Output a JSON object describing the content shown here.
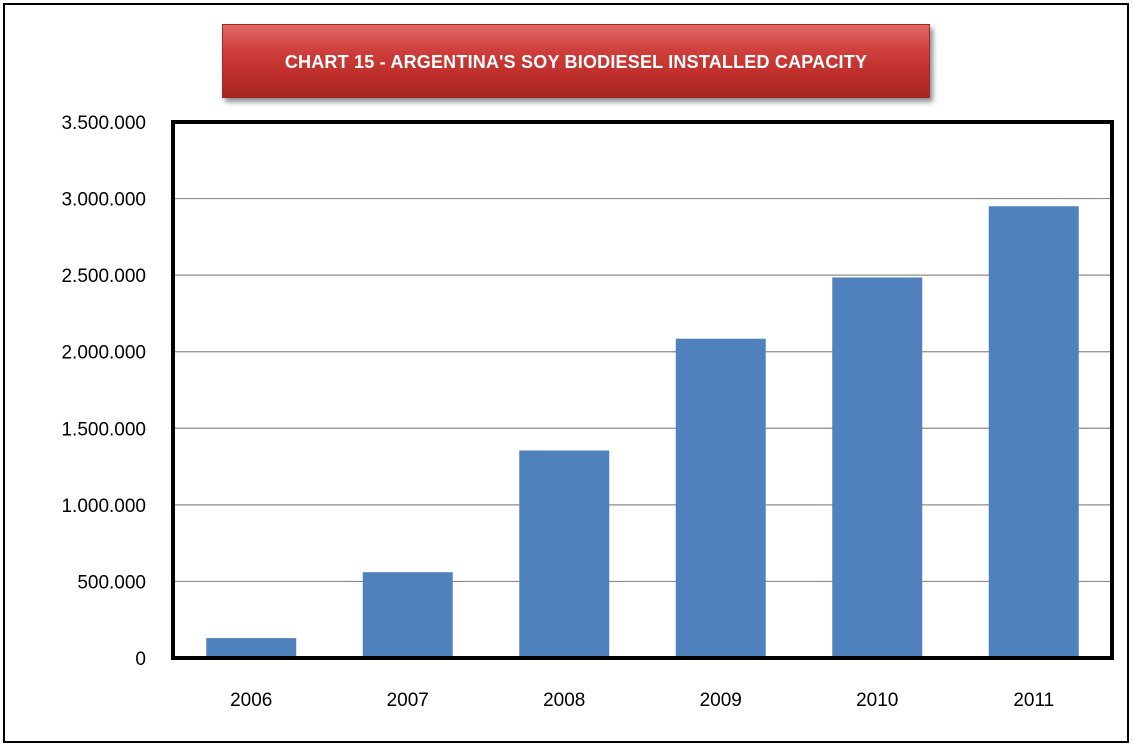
{
  "chart_data": {
    "type": "bar",
    "title": "CHART 15 - ARGENTINA'S SOY BIODIESEL INSTALLED CAPACITY",
    "categories": [
      "2006",
      "2007",
      "2008",
      "2009",
      "2010",
      "2011"
    ],
    "values": [
      130000,
      560000,
      1355000,
      2085000,
      2485000,
      2950000
    ],
    "ylim": [
      0,
      3500000
    ],
    "ytick_values": [
      0,
      500000,
      1000000,
      1500000,
      2000000,
      2500000,
      3000000,
      3500000
    ],
    "ytick_labels": [
      "0",
      "500.000",
      "1.000.000",
      "1.500.000",
      "2.000.000",
      "2.500.000",
      "3.000.000",
      "3.500.000"
    ],
    "xlabel": "",
    "ylabel": "",
    "grid": true,
    "legend": "none",
    "bar_color": "#4f81bd",
    "title_color": "#c0302c"
  }
}
